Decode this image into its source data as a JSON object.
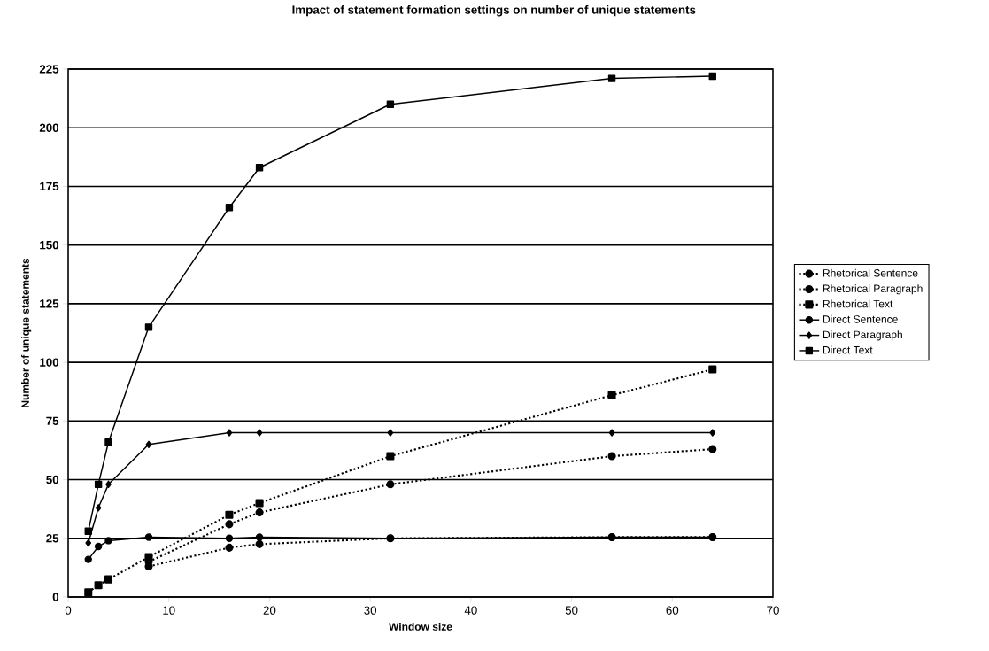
{
  "chart_data": {
    "type": "line",
    "title": "Impact of statement formation settings on number of unique statements",
    "xlabel": "Window size",
    "ylabel": "Number of unique statements",
    "xlim": [
      0,
      70
    ],
    "xticks": [
      0,
      10,
      20,
      30,
      40,
      50,
      60,
      70
    ],
    "ylim": [
      0,
      225
    ],
    "yticks": [
      0,
      25,
      50,
      75,
      100,
      125,
      150,
      175,
      200,
      225
    ],
    "grid": "y",
    "legend": "right",
    "series": [
      {
        "name": "Rhetorical Sentence",
        "color": "#000000",
        "marker": "circle",
        "line_style": "dotted",
        "x": [
          8,
          16,
          19,
          32,
          54,
          64
        ],
        "values": [
          13,
          21,
          22.5,
          25,
          25.5,
          25.5
        ]
      },
      {
        "name": "Rhetorical Paragraph",
        "color": "#000000",
        "marker": "circle",
        "line_style": "dotted",
        "x": [
          8,
          16,
          19,
          32,
          54,
          64
        ],
        "values": [
          15,
          31,
          36,
          48,
          60,
          63
        ]
      },
      {
        "name": "Rhetorical Text",
        "color": "#000000",
        "marker": "square",
        "line_style": "dotted",
        "x": [
          2,
          3,
          4,
          8,
          16,
          19,
          32,
          54,
          64
        ],
        "values": [
          2,
          5,
          7.5,
          17,
          35,
          40,
          60,
          86,
          97
        ]
      },
      {
        "name": "Direct Sentence",
        "color": "#000000",
        "marker": "circle",
        "line_style": "solid",
        "x": [
          2,
          3,
          4,
          8,
          16,
          19,
          32,
          54,
          64
        ],
        "values": [
          16,
          21.5,
          24,
          25.5,
          25,
          25.5,
          25,
          25.5,
          25.5
        ]
      },
      {
        "name": "Direct Paragraph",
        "color": "#000000",
        "marker": "diamond",
        "line_style": "solid",
        "x": [
          2,
          3,
          4,
          8,
          16,
          19,
          32,
          54,
          64
        ],
        "values": [
          23,
          38,
          48,
          65,
          70,
          70,
          70,
          70,
          70
        ]
      },
      {
        "name": "Direct Text",
        "color": "#000000",
        "marker": "square",
        "line_style": "solid",
        "x": [
          2,
          3,
          4,
          8,
          16,
          19,
          32,
          54,
          64
        ],
        "values": [
          28,
          48,
          66,
          115,
          166,
          183,
          210,
          221,
          222
        ]
      }
    ]
  }
}
